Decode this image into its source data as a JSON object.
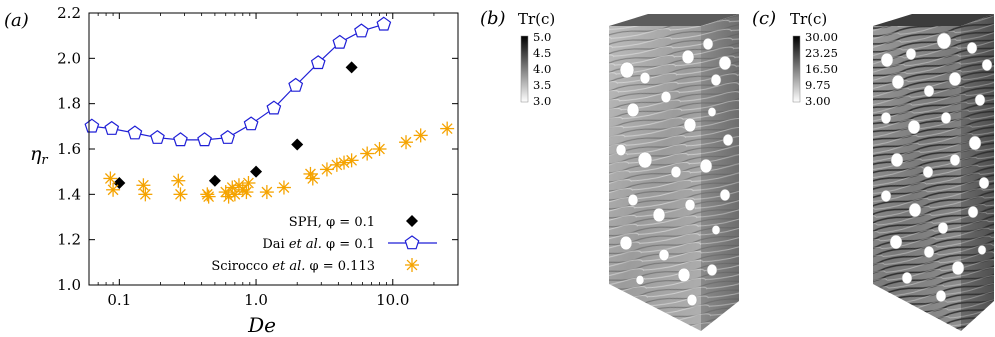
{
  "panel_labels": {
    "a": "(a)",
    "b": "(b)",
    "c": "(c)"
  },
  "colors": {
    "dai": "#1f1fd6",
    "scirocco": "#f5a300",
    "sph": "#000000"
  },
  "chart_data": {
    "type": "scatter",
    "xscale": "log",
    "xlabel": "De",
    "ylabel": "η_r",
    "xlim": [
      0.06,
      30
    ],
    "ylim": [
      1.0,
      2.2
    ],
    "xticks": [
      {
        "value": 0.1,
        "label": "0.1"
      },
      {
        "value": 1.0,
        "label": "1.0"
      },
      {
        "value": 10.0,
        "label": "10.0"
      }
    ],
    "yticks": [
      {
        "value": 1.0,
        "label": "1.0"
      },
      {
        "value": 1.2,
        "label": "1.2"
      },
      {
        "value": 1.4,
        "label": "1.4"
      },
      {
        "value": 1.6,
        "label": "1.6"
      },
      {
        "value": 1.8,
        "label": "1.8"
      },
      {
        "value": 2.0,
        "label": "2.0"
      },
      {
        "value": 2.2,
        "label": "2.2"
      }
    ],
    "legend_position": "bottom-right",
    "legend": [
      {
        "label_pre": "SPH, ",
        "label_italic": "",
        "label_post": "φ = 0.1",
        "series": "sph"
      },
      {
        "label_pre": "Dai ",
        "label_italic": "et al.",
        "label_post": " φ = 0.1",
        "series": "dai"
      },
      {
        "label_pre": "Scirocco ",
        "label_italic": "et al.",
        "label_post": " φ = 0.113",
        "series": "scirocco"
      }
    ],
    "series": [
      {
        "key": "sph",
        "marker": "diamond",
        "x": [
          0.1,
          0.5,
          1.0,
          2.0,
          5.0
        ],
        "y": [
          1.45,
          1.46,
          1.5,
          1.62,
          1.96
        ]
      },
      {
        "key": "dai",
        "marker": "pentagon",
        "line": true,
        "x": [
          0.063,
          0.088,
          0.13,
          0.19,
          0.28,
          0.42,
          0.62,
          0.92,
          1.35,
          1.95,
          2.85,
          4.1,
          5.9,
          8.6
        ],
        "y": [
          1.7,
          1.69,
          1.67,
          1.65,
          1.64,
          1.64,
          1.65,
          1.71,
          1.78,
          1.88,
          1.98,
          2.07,
          2.12,
          2.15
        ]
      },
      {
        "key": "scirocco",
        "marker": "asterisk",
        "x": [
          0.086,
          0.09,
          0.15,
          0.155,
          0.27,
          0.28,
          0.44,
          0.45,
          0.6,
          0.63,
          0.67,
          0.7,
          0.75,
          0.8,
          0.85,
          0.88,
          1.2,
          1.6,
          2.5,
          2.6,
          3.3,
          3.9,
          4.4,
          5.0,
          6.5,
          8.0,
          12.5,
          16.0,
          25.0
        ],
        "y": [
          1.47,
          1.42,
          1.44,
          1.4,
          1.46,
          1.4,
          1.4,
          1.39,
          1.41,
          1.39,
          1.43,
          1.4,
          1.44,
          1.42,
          1.41,
          1.45,
          1.41,
          1.43,
          1.49,
          1.47,
          1.51,
          1.53,
          1.54,
          1.55,
          1.58,
          1.6,
          1.63,
          1.66,
          1.69
        ]
      }
    ]
  },
  "colorbar_b": {
    "title": "Tr(c)",
    "ticks": [
      "5.0",
      "4.5",
      "4.0",
      "3.5",
      "3.0"
    ]
  },
  "colorbar_c": {
    "title": "Tr(c)",
    "ticks": [
      "30.00",
      "23.25",
      "16.50",
      "9.75",
      "3.00"
    ]
  }
}
